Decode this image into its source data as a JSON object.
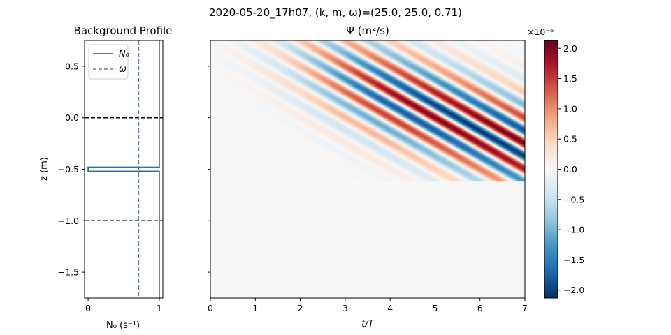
{
  "figure": {
    "suptitle": "2020-05-20_17h07, (k, m, ω)=(25.0, 25.0, 0.71)"
  },
  "chart_data": [
    {
      "type": "line",
      "title": "Background Profile",
      "xlabel": "N₀ (s⁻¹)",
      "ylabel": "z (m)",
      "xlim": [
        -0.05,
        1.05
      ],
      "ylim": [
        -1.75,
        0.75
      ],
      "xticks": [
        0,
        1
      ],
      "yticks": [
        0.5,
        0.0,
        -0.5,
        -1.0,
        -1.5
      ],
      "ytick_labels": [
        "0.5",
        "0.0",
        "−0.5",
        "−1.0",
        "−1.5"
      ],
      "series": [
        {
          "name": "N₀",
          "color": "#1f77b4",
          "style": "solid",
          "points": [
            [
              1.0,
              0.75
            ],
            [
              1.0,
              -0.48
            ],
            [
              0.0,
              -0.48
            ],
            [
              0.0,
              -0.52
            ],
            [
              1.0,
              -0.52
            ],
            [
              1.0,
              -1.75
            ]
          ]
        },
        {
          "name": "ω",
          "color": "#6a8096",
          "style": "dashed",
          "points": [
            [
              0.71,
              0.75
            ],
            [
              0.71,
              -1.75
            ]
          ]
        }
      ],
      "hlines": [
        {
          "y": 0.0,
          "color": "#000000",
          "style": "dashed"
        },
        {
          "y": -1.0,
          "color": "#000000",
          "style": "dashed"
        }
      ],
      "legend": "top-left"
    },
    {
      "type": "heatmap",
      "title": "Ψ (m²/s)",
      "xlabel": "t/T",
      "xlim": [
        0,
        7
      ],
      "ylim": [
        -1.75,
        0.75
      ],
      "xticks": [
        0,
        1,
        2,
        3,
        4,
        5,
        6,
        7
      ],
      "colormap": "RdBu_r",
      "wave": {
        "k": 25.0,
        "m": 25.0,
        "omega": 0.71,
        "amplitude": 2.1e-06
      },
      "colorbar": {
        "exponent_label": "×10⁻⁶",
        "vmin": -2.13,
        "vmax": 2.13,
        "ticks": [
          -2.0,
          -1.5,
          -1.0,
          -0.5,
          0.0,
          0.5,
          1.0,
          1.5,
          2.0
        ],
        "tick_labels": [
          "−2.0",
          "−1.5",
          "−1.0",
          "−0.5",
          "0.0",
          "0.5",
          "1.0",
          "1.5",
          "2.0"
        ]
      }
    }
  ]
}
